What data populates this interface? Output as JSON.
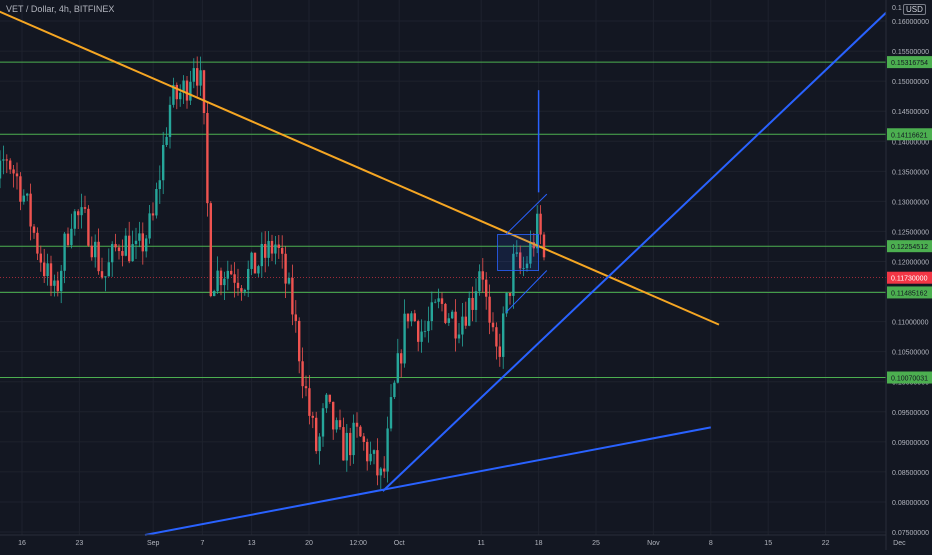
{
  "header": {
    "symbol_title": "VET / Dollar, 4h, BITFINEX",
    "currency_button": "USD"
  },
  "colors": {
    "background": "#131722",
    "grid": "#1e222d",
    "up_candle": "#26a69a",
    "down_candle": "#ef5350",
    "horizontal_level": "#4caf50",
    "trendline_orange": "#f5a623",
    "trendline_blue": "#2962ff",
    "axis_text": "#b2b5be",
    "current_price_bg": "#f23645"
  },
  "chart_data": {
    "type": "candlestick",
    "title": "VET / Dollar, 4h, BITFINEX",
    "ylim": [
      0.0745,
      0.1635
    ],
    "y_ticks": [
      "0.07500000",
      "0.08000000",
      "0.08500000",
      "0.09000000",
      "0.09500000",
      "0.10000000",
      "0.10500000",
      "0.11000000",
      "0.11500000",
      "0.12000000",
      "0.12500000",
      "0.13000000",
      "0.13500000",
      "0.14000000",
      "0.14500000",
      "0.15000000",
      "0.15500000",
      "0.16000000"
    ],
    "y_top_tick": "0.1",
    "x_ticks": [
      "16",
      "23",
      "Sep",
      "7",
      "13",
      "20",
      "12:00",
      "Oct",
      "11",
      "18",
      "25",
      "Nov",
      "8",
      "15",
      "22",
      "Dec"
    ],
    "grid": true,
    "horizontal_levels": [
      {
        "value": 0.15316754,
        "label": "0.15316754"
      },
      {
        "value": 0.14116621,
        "label": "0.14116621"
      },
      {
        "value": 0.12254512,
        "label": "0.12254512"
      },
      {
        "value": 0.11485162,
        "label": "0.11485162"
      },
      {
        "value": 0.10070031,
        "label": "0.10070031"
      }
    ],
    "current_price": {
      "value": 0.1173,
      "label": "0.11730000"
    },
    "trendlines": [
      {
        "color": "orange",
        "from": [
          "Aug 10",
          0.1635
        ],
        "to": [
          "Nov 9",
          0.1095
        ]
      },
      {
        "color": "blue",
        "from": [
          "Sep 29",
          0.0818
        ],
        "to": [
          "Dec 1",
          0.1635
        ]
      },
      {
        "color": "blue",
        "from": [
          "Aug 31",
          0.0745
        ],
        "to": [
          "Nov 8",
          0.0924
        ]
      }
    ],
    "channel": {
      "upper": [
        [
          "Oct 14",
          0.1245
        ],
        [
          "Oct 19",
          0.1312
        ]
      ],
      "lower": [
        [
          "Oct 14",
          0.1115
        ],
        [
          "Oct 19",
          0.1185
        ]
      ]
    },
    "target_arrow": {
      "date": "Oct 18",
      "from": 0.1315,
      "to": 0.1485
    },
    "range_box": {
      "from": "Oct 13",
      "to": "Oct 18",
      "high": 0.1245,
      "low": 0.1185
    },
    "price_path": [
      [
        "Aug 10",
        0.115
      ],
      [
        "Aug 12",
        0.127
      ],
      [
        "Aug 14",
        0.138
      ],
      [
        "Aug 16",
        0.132
      ],
      [
        "Aug 18",
        0.122
      ],
      [
        "Aug 20",
        0.114
      ],
      [
        "Aug 22",
        0.128
      ],
      [
        "Aug 24",
        0.126
      ],
      [
        "Aug 26",
        0.117
      ],
      [
        "Aug 28",
        0.124
      ],
      [
        "Aug 30",
        0.121
      ],
      [
        "Sep 1",
        0.127
      ],
      [
        "Sep 3",
        0.146
      ],
      [
        "Sep 5",
        0.149
      ],
      [
        "Sep 6",
        0.154
      ],
      [
        "Sep 7",
        0.148
      ],
      [
        "Sep 8",
        0.117
      ],
      [
        "Sep 10",
        0.119
      ],
      [
        "Sep 12",
        0.117
      ],
      [
        "Sep 14",
        0.12
      ],
      [
        "Sep 16",
        0.123
      ],
      [
        "Sep 18",
        0.112
      ],
      [
        "Sep 20",
        0.095
      ],
      [
        "Sep 21",
        0.088
      ],
      [
        "Sep 22",
        0.096
      ],
      [
        "Sep 24",
        0.089
      ],
      [
        "Sep 26",
        0.091
      ],
      [
        "Sep 28",
        0.086
      ],
      [
        "Sep 29",
        0.083
      ],
      [
        "Sep 30",
        0.095
      ],
      [
        "Oct 2",
        0.112
      ],
      [
        "Oct 4",
        0.108
      ],
      [
        "Oct 6",
        0.113
      ],
      [
        "Oct 8",
        0.11
      ],
      [
        "Oct 10",
        0.114
      ],
      [
        "Oct 11",
        0.121
      ],
      [
        "Oct 12",
        0.108
      ],
      [
        "Oct 13",
        0.104
      ],
      [
        "Oct 14",
        0.112
      ],
      [
        "Oct 15",
        0.12
      ],
      [
        "Oct 16",
        0.118
      ],
      [
        "Oct 17",
        0.122
      ],
      [
        "Oct 18",
        0.126
      ],
      [
        "Oct 19",
        0.1173
      ]
    ]
  }
}
